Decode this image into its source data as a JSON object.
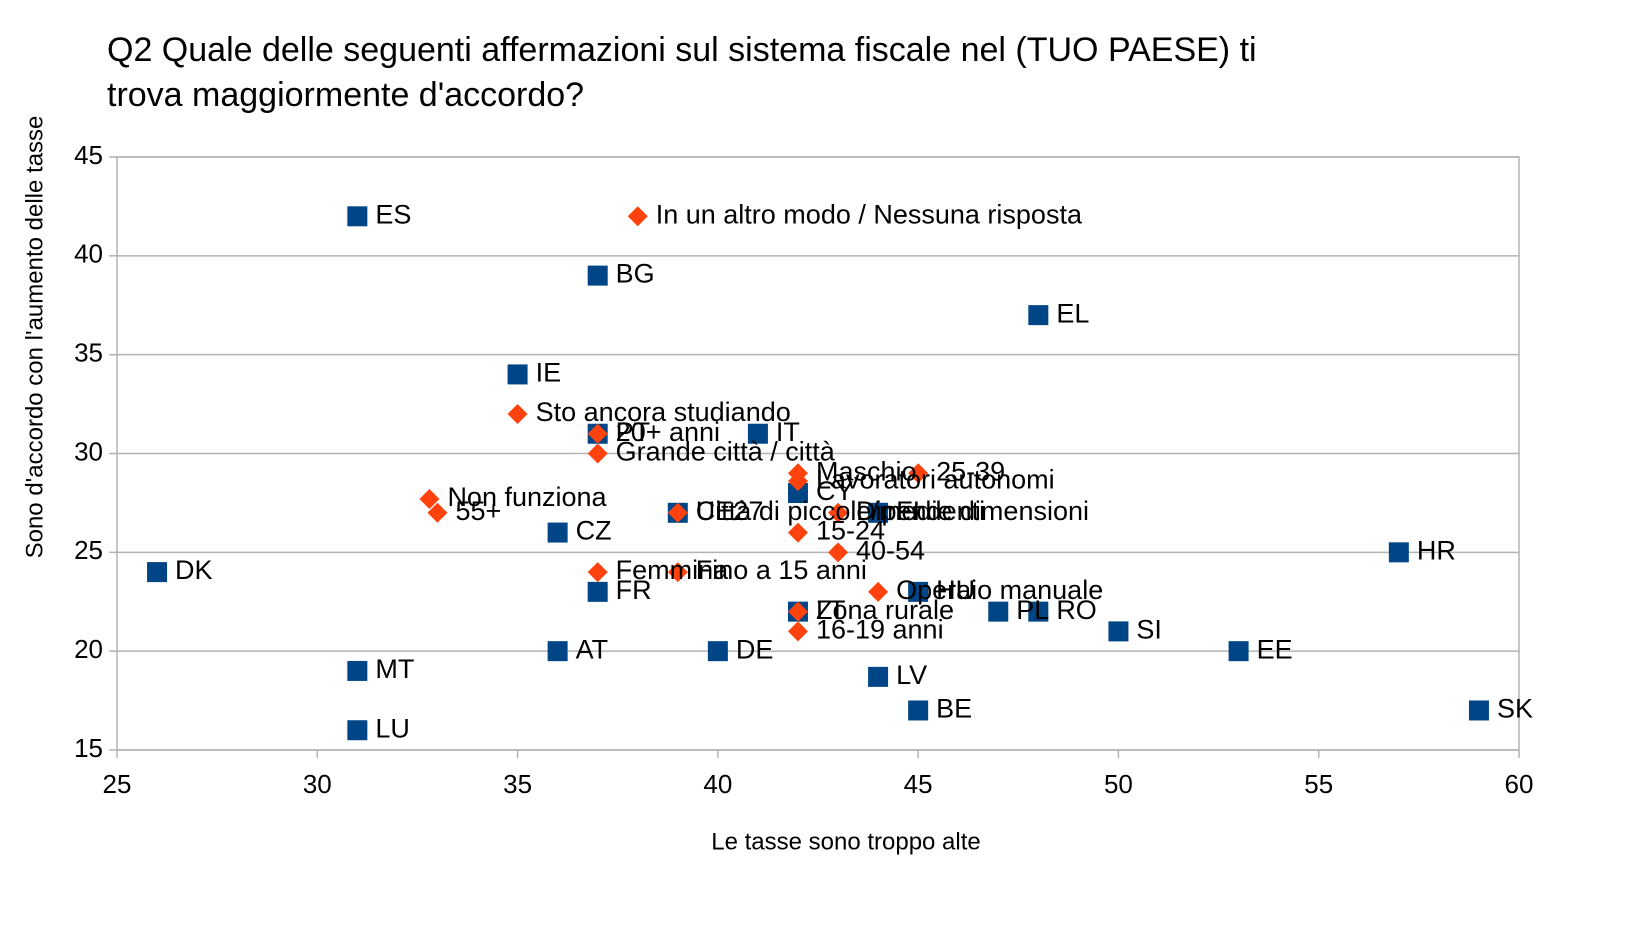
{
  "chart_data": {
    "type": "scatter",
    "title": [
      "Q2 Quale delle seguenti affermazioni sul sistema fiscale nel (TUO PAESE) ti",
      "trova maggiormente d'accordo?"
    ],
    "x_label": "Le tasse sono troppo alte",
    "y_label": "Sono d'accordo con l'aumento delle tasse",
    "xlim": [
      25,
      60
    ],
    "xticks": [
      25,
      30,
      35,
      40,
      45,
      50,
      55,
      60
    ],
    "ylim": [
      15,
      45
    ],
    "yticks": [
      15,
      20,
      25,
      30,
      35,
      40,
      45
    ],
    "grid": true,
    "series": [
      {
        "marker": "square",
        "color": "#004586",
        "labels": [
          "ES",
          "BG",
          "EL",
          "IE",
          "IT",
          "PT",
          "CY",
          "UE27",
          "FI",
          "CZ",
          "DK",
          "HR",
          "FR",
          "HU",
          "LT",
          "PL",
          "RO",
          "SI",
          "EE",
          "AT",
          "DE",
          "MT",
          "LV",
          "BE",
          "SK",
          "LU"
        ],
        "x": [
          31,
          37,
          48,
          35,
          41,
          37,
          42,
          39,
          44,
          36,
          26,
          57,
          37,
          45,
          42,
          47,
          48,
          50,
          53,
          36,
          40,
          31,
          44,
          45,
          59,
          31
        ],
        "y": [
          42,
          39,
          37,
          34,
          31,
          31,
          28,
          27,
          27,
          26,
          24,
          25,
          23,
          23,
          22,
          22,
          22,
          21,
          20,
          20,
          20,
          19,
          18.7,
          17,
          17,
          16
        ]
      },
      {
        "marker": "diamond",
        "color": "#ff420e",
        "labels": [
          "In un altro modo / Nessuna risposta",
          "Sto ancora studiando",
          "20+ anni",
          "Grande città / città",
          "Maschio",
          "25-39",
          "Lavoratori autonomi",
          "Non funziona",
          "55+",
          "Città di piccole/medie dimensioni",
          "Dipendenti",
          "15-24",
          "40-54",
          "Femmina",
          "Fino a 15 anni",
          "Operaio manuale",
          "Zona rurale",
          "16-19 anni"
        ],
        "x": [
          38,
          35,
          37,
          37,
          42,
          45,
          42,
          32.8,
          33,
          39,
          43,
          42,
          43,
          37,
          39,
          44,
          42,
          42
        ],
        "y": [
          42,
          32,
          31,
          30,
          29,
          29,
          28.6,
          27.7,
          27,
          27,
          27,
          26,
          25,
          24,
          24,
          23,
          22,
          21
        ]
      }
    ]
  }
}
